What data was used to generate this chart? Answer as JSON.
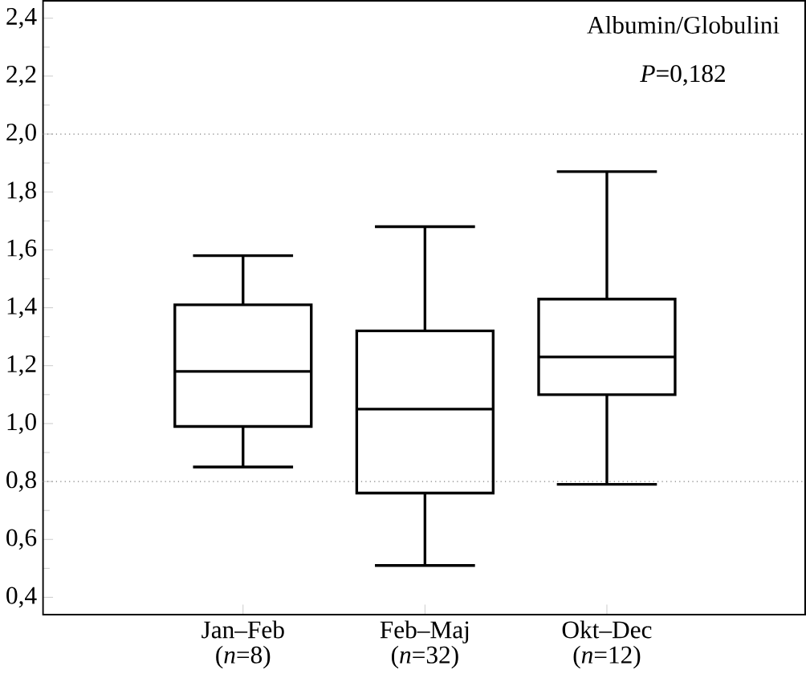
{
  "chart_data": {
    "type": "box",
    "categories": [
      "Jan–Feb (*n*=8)",
      "Feb–Maj (*n*=32)",
      "Okt–Dec (*n*=12)"
    ],
    "boxes": [
      {
        "low": 0.85,
        "q1": 0.99,
        "median": 1.18,
        "q3": 1.41,
        "high": 1.58
      },
      {
        "low": 0.51,
        "q1": 0.76,
        "median": 1.05,
        "q3": 1.32,
        "high": 1.68
      },
      {
        "low": 0.79,
        "q1": 1.1,
        "median": 1.23,
        "q3": 1.43,
        "high": 1.87
      }
    ],
    "color": "#000000",
    "ylim": [
      0.34,
      2.46
    ],
    "yticks": [
      {
        "value": 0.4,
        "label": "0,4"
      },
      {
        "value": 0.6,
        "label": "0,6"
      },
      {
        "value": 0.8,
        "label": "0,8"
      },
      {
        "value": 1.0,
        "label": "1,0"
      },
      {
        "value": 1.2,
        "label": "1,2"
      },
      {
        "value": 1.4,
        "label": "1,4"
      },
      {
        "value": 1.6,
        "label": "1,6"
      },
      {
        "value": 1.8,
        "label": "1,8"
      },
      {
        "value": 2.0,
        "label": "2,0"
      },
      {
        "value": 2.2,
        "label": "2,2"
      },
      {
        "value": 2.4,
        "label": "2,4"
      }
    ],
    "ref_lines": [
      {
        "axis": "y",
        "value": 2.0,
        "color": "#808080",
        "line_style": "dotted"
      },
      {
        "axis": "y",
        "value": 0.8,
        "color": "#808080",
        "line_style": "dotted"
      }
    ],
    "annotations": [
      "Albumin/Globulini",
      "*P*=0,182"
    ],
    "grid": false
  }
}
